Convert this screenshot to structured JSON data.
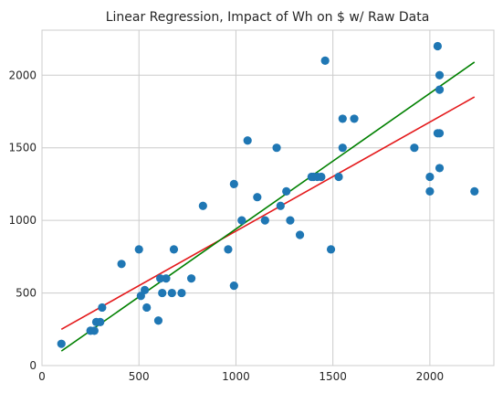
{
  "chart_data": {
    "type": "scatter",
    "title": "Linear Regression, Impact of Wh on $ w/ Raw Data",
    "xlabel": "",
    "ylabel": "",
    "xlim": [
      0,
      2330
    ],
    "ylim": [
      0,
      2310
    ],
    "x_ticks": [
      0,
      500,
      1000,
      1500,
      2000
    ],
    "y_ticks": [
      0,
      500,
      1000,
      1500,
      2000
    ],
    "grid": true,
    "legend": "none",
    "colors": {
      "points": "#1f77b4",
      "fit_red": "#e41a1c",
      "fit_green": "#008000"
    },
    "series": [
      {
        "kind": "points",
        "x": [
          100,
          250,
          270,
          280,
          300,
          310,
          410,
          500,
          510,
          530,
          540,
          600,
          610,
          620,
          640,
          670,
          680,
          720,
          770,
          830,
          960,
          990,
          990,
          1030,
          1060,
          1110,
          1150,
          1210,
          1230,
          1260,
          1280,
          1330,
          1390,
          1400,
          1420,
          1440,
          1460,
          1490,
          1530,
          1550,
          1550,
          1610,
          1920,
          2000,
          2000,
          2040,
          2040,
          2050,
          2050,
          2050,
          2050,
          2230
        ],
        "y": [
          150,
          240,
          240,
          300,
          300,
          400,
          700,
          800,
          480,
          520,
          400,
          310,
          600,
          500,
          600,
          500,
          800,
          500,
          600,
          1100,
          800,
          1250,
          550,
          1000,
          1550,
          1160,
          1000,
          1500,
          1100,
          1200,
          1000,
          900,
          1300,
          1300,
          1300,
          1300,
          2100,
          800,
          1300,
          1500,
          1700,
          1700,
          1500,
          1300,
          1200,
          1600,
          2200,
          2000,
          1900,
          1360,
          1600,
          1200
        ]
      },
      {
        "kind": "line",
        "x": [
          100,
          2230
        ],
        "y": [
          250,
          1850
        ]
      },
      {
        "kind": "line",
        "x": [
          100,
          2230
        ],
        "y": [
          100,
          2090
        ]
      }
    ]
  }
}
